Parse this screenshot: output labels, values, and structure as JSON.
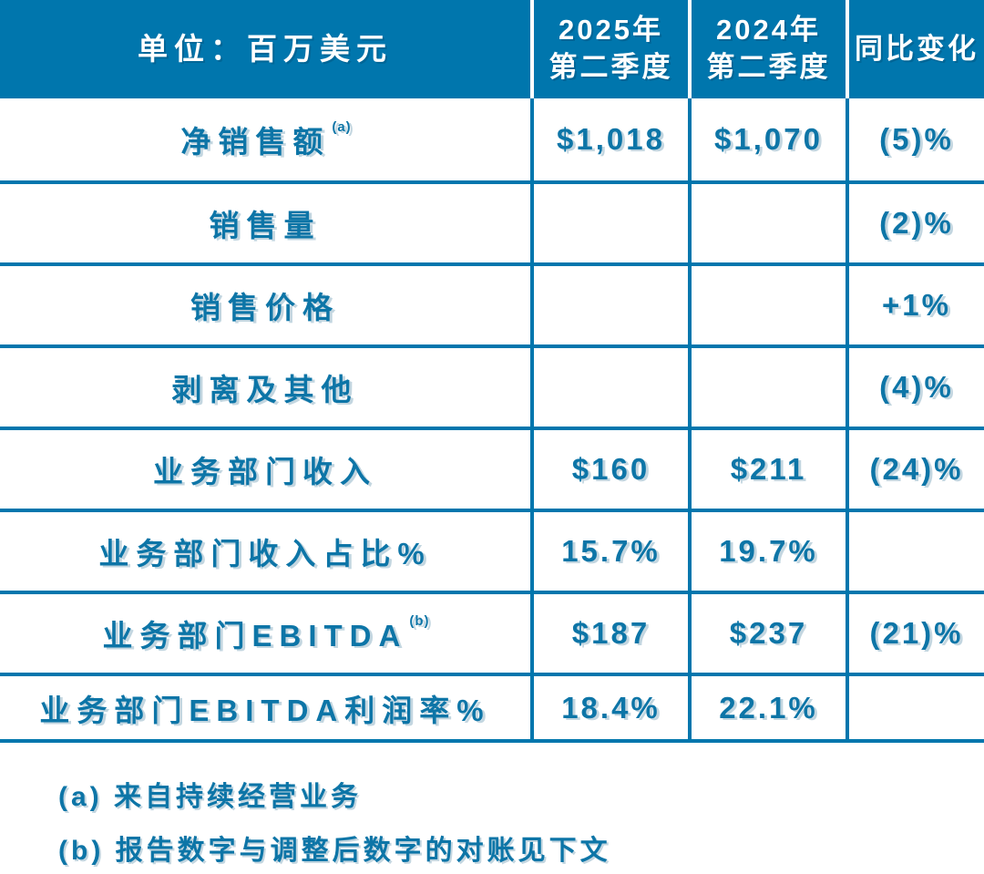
{
  "colors": {
    "header_background": "#0076ad",
    "body_text": "#0d75a7",
    "grid_line": "#0076ad",
    "page_background": "#ffffff",
    "header_text": "#ffffff"
  },
  "chart_data": {
    "type": "table",
    "title": "单位：百万美元",
    "columns": [
      "单位：百万美元",
      "2025年第二季度",
      "2024年第二季度",
      "同比变化"
    ],
    "header": {
      "unit_label": "单位：百万美元",
      "col_2025": [
        "2025年",
        "第二季度"
      ],
      "col_2024": [
        "2024年",
        "第二季度"
      ],
      "col_yoy": "同比变化"
    },
    "rows": [
      {
        "label": "净销售额",
        "sup": "(a)",
        "q2_2025": "$1,018",
        "q2_2024": "$1,070",
        "yoy": "(5)%"
      },
      {
        "label": "销售量",
        "sup": "",
        "q2_2025": "",
        "q2_2024": "",
        "yoy": "(2)%"
      },
      {
        "label": "销售价格",
        "sup": "",
        "q2_2025": "",
        "q2_2024": "",
        "yoy": "+1%"
      },
      {
        "label": "剥离及其他",
        "sup": "",
        "q2_2025": "",
        "q2_2024": "",
        "yoy": "(4)%"
      },
      {
        "label": "业务部门收入",
        "sup": "",
        "q2_2025": "$160",
        "q2_2024": "$211",
        "yoy": "(24)%"
      },
      {
        "label": "业务部门收入占比%",
        "sup": "",
        "q2_2025": "15.7%",
        "q2_2024": "19.7%",
        "yoy": ""
      },
      {
        "label": "业务部门EBITDA",
        "sup": "(b)",
        "q2_2025": "$187",
        "q2_2024": "$237",
        "yoy": "(21)%"
      },
      {
        "label": "业务部门EBITDA利润率%",
        "sup": "",
        "q2_2025": "18.4%",
        "q2_2024": "22.1%",
        "yoy": ""
      }
    ],
    "footnotes": [
      "(a) 来自持续经营业务",
      "(b) 报告数字与调整后数字的对账见下文"
    ]
  }
}
